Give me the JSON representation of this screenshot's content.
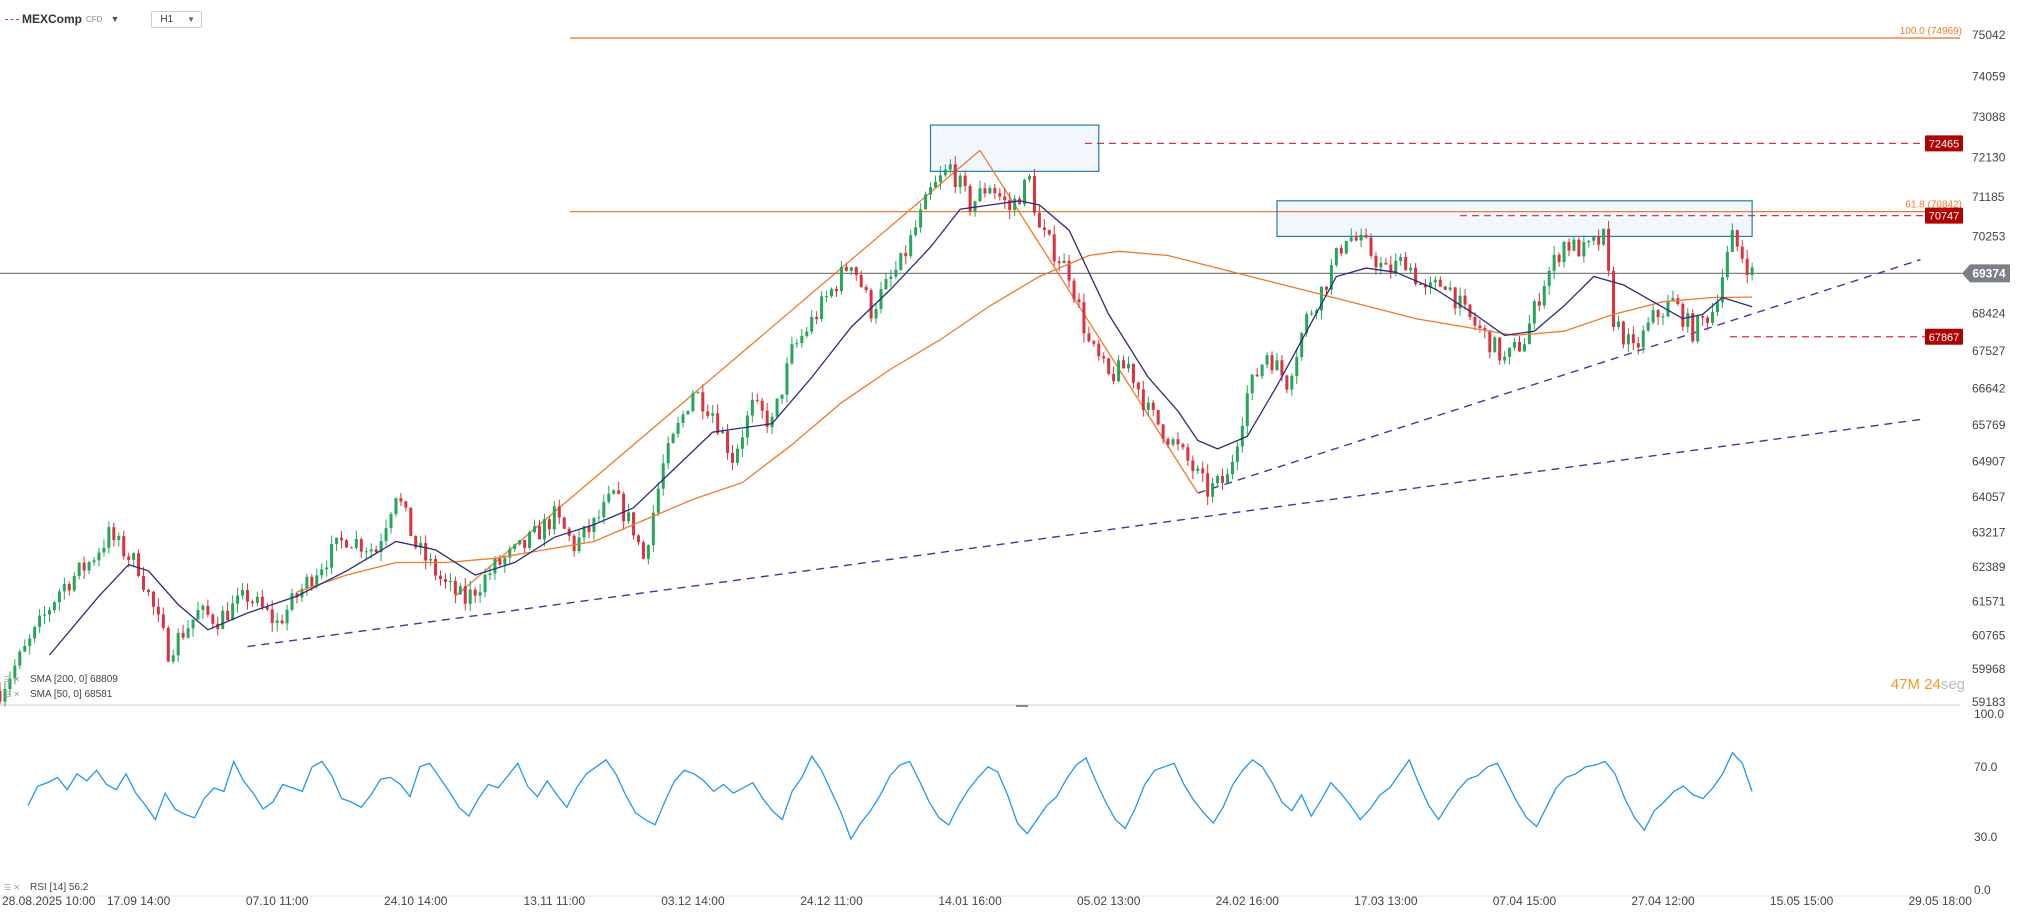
{
  "header": {
    "symbol": "MEXComp",
    "symbol_tag": "CFD",
    "timeframe": "H1"
  },
  "colors": {
    "bullish": "#26a65b",
    "bearish": "#d9333f",
    "sma50": "#2b2d7a",
    "sma200": "#f07a2a",
    "rsi": "#2196f3",
    "fib": "#f07a2a",
    "trend": "#3a3aa0",
    "badge_red": "#b00000",
    "current": "#808080",
    "zone": "#2a7ab0"
  },
  "indicators": {
    "sma200_label": "SMA [200, 0] 68809",
    "sma50_label": "SMA [50, 0] 68581",
    "rsi_label": "RSI [14] 56.2"
  },
  "timer": {
    "minutes": "47",
    "minutes_unit": "M",
    "seconds": "24",
    "seconds_unit": "seg"
  },
  "chart_data": [
    {
      "type": "candlestick",
      "title": "MEXComp H1",
      "y_ticks": [
        "75042",
        "74059",
        "73088",
        "72130",
        "71185",
        "70253",
        "69374",
        "68424",
        "67527",
        "66642",
        "65769",
        "64907",
        "64057",
        "63217",
        "62389",
        "61571",
        "60765",
        "59968",
        "59183"
      ],
      "y_range": [
        59183,
        75042
      ],
      "x_ticks": [
        "28.08.2025 10:00",
        "17.09 14:00",
        "07.10 11:00",
        "24.10 14:00",
        "13.11 11:00",
        "03.12 14:00",
        "24.12 11:00",
        "14.01 16:00",
        "05.02 13:00",
        "24.02 16:00",
        "17.03 13:00",
        "07.04 15:00",
        "27.04 12:00",
        "15.05 15:00",
        "29.05 18:00"
      ],
      "current_price": 69374,
      "price_path": [
        {
          "x": 0,
          "y": 59450
        },
        {
          "x": 3,
          "y": 60600
        },
        {
          "x": 6,
          "y": 61850
        },
        {
          "x": 9,
          "y": 62500
        },
        {
          "x": 11,
          "y": 63150
        },
        {
          "x": 14,
          "y": 62400
        },
        {
          "x": 17,
          "y": 60400
        },
        {
          "x": 20,
          "y": 61300
        },
        {
          "x": 22,
          "y": 61150
        },
        {
          "x": 25,
          "y": 61700
        },
        {
          "x": 28,
          "y": 61050
        },
        {
          "x": 32,
          "y": 62350
        },
        {
          "x": 35,
          "y": 63100
        },
        {
          "x": 38,
          "y": 62800
        },
        {
          "x": 40,
          "y": 64200
        },
        {
          "x": 42,
          "y": 62900
        },
        {
          "x": 45,
          "y": 61950
        },
        {
          "x": 47,
          "y": 61600
        },
        {
          "x": 50,
          "y": 62400
        },
        {
          "x": 53,
          "y": 62900
        },
        {
          "x": 56,
          "y": 63600
        },
        {
          "x": 58,
          "y": 62900
        },
        {
          "x": 60,
          "y": 63400
        },
        {
          "x": 62,
          "y": 64100
        },
        {
          "x": 64,
          "y": 63300
        },
        {
          "x": 65,
          "y": 62600
        },
        {
          "x": 67,
          "y": 64800
        },
        {
          "x": 70,
          "y": 66600
        },
        {
          "x": 72,
          "y": 66100
        },
        {
          "x": 74,
          "y": 65000
        },
        {
          "x": 76,
          "y": 66200
        },
        {
          "x": 78,
          "y": 65800
        },
        {
          "x": 80,
          "y": 67500
        },
        {
          "x": 83,
          "y": 68600
        },
        {
          "x": 86,
          "y": 69700
        },
        {
          "x": 88,
          "y": 68500
        },
        {
          "x": 91,
          "y": 69600
        },
        {
          "x": 94,
          "y": 71300
        },
        {
          "x": 96,
          "y": 71900
        },
        {
          "x": 98,
          "y": 71000
        },
        {
          "x": 100,
          "y": 71500
        },
        {
          "x": 102,
          "y": 70900
        },
        {
          "x": 104,
          "y": 71600
        },
        {
          "x": 105,
          "y": 70400
        },
        {
          "x": 108,
          "y": 69400
        },
        {
          "x": 110,
          "y": 67700
        },
        {
          "x": 112,
          "y": 66900
        },
        {
          "x": 114,
          "y": 67200
        },
        {
          "x": 116,
          "y": 66100
        },
        {
          "x": 118,
          "y": 65500
        },
        {
          "x": 120,
          "y": 64900
        },
        {
          "x": 122,
          "y": 64200
        },
        {
          "x": 124,
          "y": 64500
        },
        {
          "x": 126,
          "y": 66500
        },
        {
          "x": 128,
          "y": 67500
        },
        {
          "x": 130,
          "y": 66800
        },
        {
          "x": 132,
          "y": 68300
        },
        {
          "x": 134,
          "y": 69200
        },
        {
          "x": 136,
          "y": 70300
        },
        {
          "x": 138,
          "y": 70000
        },
        {
          "x": 140,
          "y": 69400
        },
        {
          "x": 142,
          "y": 69700
        },
        {
          "x": 144,
          "y": 68900
        },
        {
          "x": 146,
          "y": 69200
        },
        {
          "x": 148,
          "y": 68400
        },
        {
          "x": 150,
          "y": 67900
        },
        {
          "x": 152,
          "y": 67300
        },
        {
          "x": 154,
          "y": 67800
        },
        {
          "x": 156,
          "y": 69200
        },
        {
          "x": 158,
          "y": 70100
        },
        {
          "x": 160,
          "y": 69900
        },
        {
          "x": 162,
          "y": 70200
        },
        {
          "x": 163,
          "y": 68300
        },
        {
          "x": 165,
          "y": 67500
        },
        {
          "x": 167,
          "y": 68300
        },
        {
          "x": 169,
          "y": 68700
        },
        {
          "x": 171,
          "y": 68000
        },
        {
          "x": 173,
          "y": 68500
        },
        {
          "x": 175,
          "y": 70200
        },
        {
          "x": 176,
          "y": 69800
        },
        {
          "x": 177,
          "y": 69374
        }
      ],
      "sma50": [
        {
          "x": 5,
          "y": 60300
        },
        {
          "x": 10,
          "y": 61700
        },
        {
          "x": 13,
          "y": 62450
        },
        {
          "x": 15,
          "y": 62300
        },
        {
          "x": 18,
          "y": 61500
        },
        {
          "x": 21,
          "y": 60900
        },
        {
          "x": 25,
          "y": 61300
        },
        {
          "x": 30,
          "y": 61700
        },
        {
          "x": 35,
          "y": 62300
        },
        {
          "x": 40,
          "y": 63000
        },
        {
          "x": 44,
          "y": 62800
        },
        {
          "x": 48,
          "y": 62200
        },
        {
          "x": 52,
          "y": 62500
        },
        {
          "x": 56,
          "y": 63100
        },
        {
          "x": 60,
          "y": 63400
        },
        {
          "x": 64,
          "y": 63800
        },
        {
          "x": 68,
          "y": 64700
        },
        {
          "x": 72,
          "y": 65600
        },
        {
          "x": 75,
          "y": 65700
        },
        {
          "x": 78,
          "y": 65800
        },
        {
          "x": 82,
          "y": 66900
        },
        {
          "x": 86,
          "y": 68100
        },
        {
          "x": 90,
          "y": 69000
        },
        {
          "x": 94,
          "y": 70000
        },
        {
          "x": 97,
          "y": 70900
        },
        {
          "x": 100,
          "y": 71000
        },
        {
          "x": 103,
          "y": 71100
        },
        {
          "x": 105,
          "y": 71000
        },
        {
          "x": 108,
          "y": 70400
        },
        {
          "x": 112,
          "y": 68400
        },
        {
          "x": 116,
          "y": 66900
        },
        {
          "x": 119,
          "y": 66100
        },
        {
          "x": 121,
          "y": 65400
        },
        {
          "x": 123,
          "y": 65200
        },
        {
          "x": 126,
          "y": 65500
        },
        {
          "x": 129,
          "y": 66700
        },
        {
          "x": 132,
          "y": 68000
        },
        {
          "x": 135,
          "y": 69300
        },
        {
          "x": 138,
          "y": 69500
        },
        {
          "x": 141,
          "y": 69400
        },
        {
          "x": 145,
          "y": 69000
        },
        {
          "x": 149,
          "y": 68400
        },
        {
          "x": 152,
          "y": 67900
        },
        {
          "x": 155,
          "y": 68000
        },
        {
          "x": 158,
          "y": 68600
        },
        {
          "x": 161,
          "y": 69300
        },
        {
          "x": 164,
          "y": 69100
        },
        {
          "x": 167,
          "y": 68700
        },
        {
          "x": 170,
          "y": 68300
        },
        {
          "x": 172,
          "y": 68400
        },
        {
          "x": 174,
          "y": 68800
        },
        {
          "x": 177,
          "y": 68581
        }
      ],
      "sma200": [
        {
          "x": 30,
          "y": 61800
        },
        {
          "x": 35,
          "y": 62200
        },
        {
          "x": 40,
          "y": 62500
        },
        {
          "x": 45,
          "y": 62500
        },
        {
          "x": 50,
          "y": 62600
        },
        {
          "x": 55,
          "y": 62800
        },
        {
          "x": 60,
          "y": 63000
        },
        {
          "x": 65,
          "y": 63500
        },
        {
          "x": 70,
          "y": 64000
        },
        {
          "x": 75,
          "y": 64400
        },
        {
          "x": 80,
          "y": 65300
        },
        {
          "x": 85,
          "y": 66300
        },
        {
          "x": 90,
          "y": 67100
        },
        {
          "x": 95,
          "y": 67800
        },
        {
          "x": 100,
          "y": 68600
        },
        {
          "x": 105,
          "y": 69300
        },
        {
          "x": 110,
          "y": 69800
        },
        {
          "x": 113,
          "y": 69900
        },
        {
          "x": 118,
          "y": 69800
        },
        {
          "x": 123,
          "y": 69500
        },
        {
          "x": 128,
          "y": 69200
        },
        {
          "x": 133,
          "y": 68900
        },
        {
          "x": 138,
          "y": 68600
        },
        {
          "x": 143,
          "y": 68300
        },
        {
          "x": 148,
          "y": 68100
        },
        {
          "x": 153,
          "y": 67900
        },
        {
          "x": 158,
          "y": 68000
        },
        {
          "x": 163,
          "y": 68400
        },
        {
          "x": 168,
          "y": 68700
        },
        {
          "x": 173,
          "y": 68800
        },
        {
          "x": 177,
          "y": 68809
        }
      ],
      "levels": [
        {
          "label": "100.0 (74969)",
          "value": 74969,
          "style": "fib"
        },
        {
          "label": "61.8 (70842)",
          "value": 70842,
          "style": "fib"
        },
        {
          "label": "72465",
          "value": 72465,
          "style": "badge"
        },
        {
          "label": "70747",
          "value": 70747,
          "style": "badge"
        },
        {
          "label": "67867",
          "value": 67867,
          "style": "badge"
        }
      ],
      "trendlines": [
        {
          "from": {
            "x": 25,
            "y": 60500
          },
          "to": {
            "x": 194,
            "y": 65900
          }
        },
        {
          "from": {
            "x": 121,
            "y": 64150
          },
          "to": {
            "x": 194,
            "y": 69700
          }
        }
      ],
      "pattern": [
        {
          "x": 46,
          "y": 61700
        },
        {
          "x": 99,
          "y": 72300
        },
        {
          "x": 121,
          "y": 64150
        }
      ],
      "zones": [
        {
          "x0": 94,
          "x1": 111,
          "y0": 71800,
          "y1": 72900
        },
        {
          "x0": 129,
          "x1": 177,
          "y0": 70253,
          "y1": 71100
        }
      ]
    },
    {
      "type": "line",
      "title": "RSI [14]",
      "y_ticks": [
        "100.0",
        "70.0",
        "30.0",
        "0.0"
      ],
      "y_range": [
        0,
        100
      ],
      "series": [
        {
          "name": "RSI [14]",
          "values": [
            48,
            59,
            61,
            64,
            57,
            66,
            62,
            68,
            60,
            57,
            66,
            55,
            48,
            40,
            55,
            46,
            43,
            41,
            52,
            58,
            56,
            73,
            62,
            55,
            46,
            50,
            60,
            58,
            56,
            70,
            73,
            65,
            52,
            50,
            47,
            54,
            63,
            64,
            60,
            53,
            70,
            72,
            64,
            56,
            47,
            42,
            52,
            60,
            58,
            65,
            72,
            59,
            53,
            62,
            54,
            47,
            58,
            66,
            70,
            74,
            66,
            54,
            44,
            40,
            37,
            50,
            62,
            68,
            66,
            62,
            56,
            60,
            55,
            58,
            61,
            52,
            45,
            40,
            56,
            64,
            76,
            68,
            56,
            44,
            29,
            38,
            45,
            54,
            65,
            71,
            73,
            62,
            50,
            41,
            37,
            48,
            57,
            64,
            70,
            67,
            54,
            38,
            32,
            40,
            48,
            53,
            63,
            71,
            75,
            62,
            50,
            40,
            35,
            46,
            60,
            68,
            70,
            72,
            60,
            51,
            44,
            38,
            47,
            60,
            68,
            74,
            70,
            61,
            50,
            45,
            54,
            42,
            51,
            61,
            55,
            48,
            40,
            46,
            54,
            58,
            66,
            74,
            60,
            48,
            40,
            49,
            57,
            63,
            65,
            70,
            72,
            61,
            50,
            41,
            36,
            47,
            58,
            64,
            66,
            70,
            71,
            73,
            66,
            52,
            41,
            34,
            45,
            50,
            56,
            59,
            54,
            52,
            58,
            66,
            78,
            72,
            56
          ]
        }
      ]
    }
  ]
}
